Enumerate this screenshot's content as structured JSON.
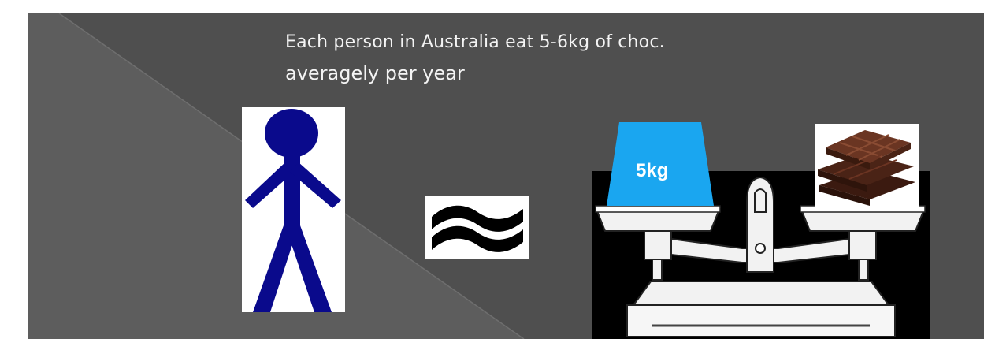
{
  "slide": {
    "title_line_1": "Each person in Australia eat 5-6kg of choc.",
    "title_line_2": "averagely per year"
  },
  "scale": {
    "weight_label": "5kg"
  },
  "colors": {
    "slide_background": "#4f4f4f",
    "stick_figure": "#0a0a8c",
    "weight_block": "#1aa6f0",
    "scale_body": "#f2f2f2",
    "chocolate": "#5b2d1e"
  },
  "icons": {
    "person": "stick-figure-icon",
    "approx": "approximately-equal-icon",
    "scale": "balance-scale-icon",
    "chocolate": "chocolate-bars-icon"
  }
}
